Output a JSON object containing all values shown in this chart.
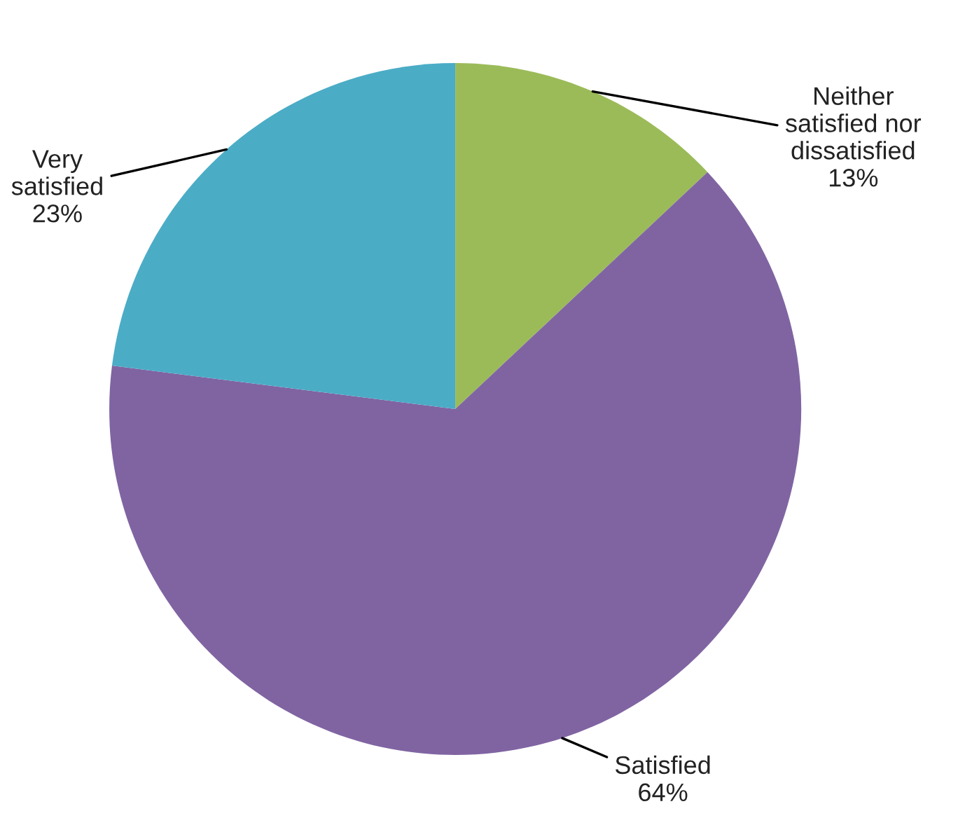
{
  "chart_data": {
    "type": "pie",
    "categories": [
      "Neither\nsatisfied nor\ndissatisfied",
      "Satisfied",
      "Very\nsatisfied"
    ],
    "values": [
      13,
      64,
      23
    ],
    "value_labels": [
      "13%",
      "64%",
      "23%"
    ],
    "colors": [
      "#9bbb59",
      "#8064a2",
      "#4bacc6"
    ],
    "legend": false
  }
}
